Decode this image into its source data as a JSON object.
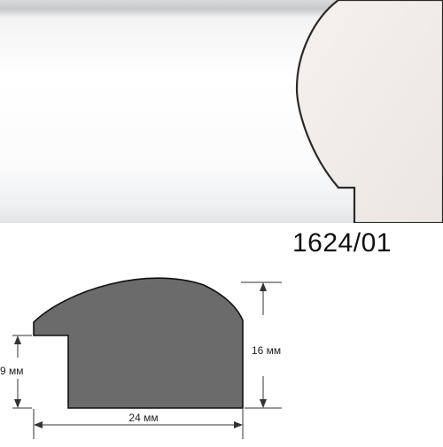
{
  "product": {
    "article_code": "1624/01",
    "profile_color": "#ffffff",
    "section_color": "#6b6b6b"
  },
  "dimensions": {
    "width_label": "24 мм",
    "height_label": "16 мм",
    "rebate_label": "9 мм"
  }
}
